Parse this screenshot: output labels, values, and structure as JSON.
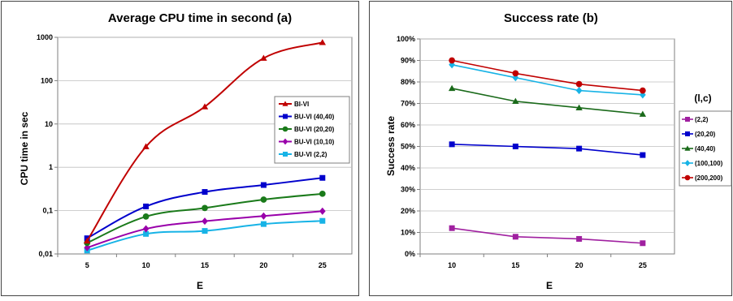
{
  "chart_data": [
    {
      "type": "line",
      "title": "Average CPU time in second (a)",
      "xlabel": "E",
      "ylabel": "CPU time in sec",
      "yscale": "log",
      "x": [
        5,
        10,
        15,
        20,
        25
      ],
      "x_ticks": [
        "5",
        "10",
        "15",
        "20",
        "25"
      ],
      "ylim": [
        0.01,
        1000
      ],
      "y_ticks": [
        "0,01",
        "0,1",
        "1",
        "10",
        "100",
        "1000"
      ],
      "grid": true,
      "legend_position": "right",
      "series": [
        {
          "name": "BI-VI",
          "color": "#c00000",
          "marker": "triangle",
          "values": [
            0.02,
            3,
            25,
            330,
            760
          ]
        },
        {
          "name": "BU-VI (40,40)",
          "color": "#0000cc",
          "marker": "square",
          "values": [
            0.023,
            0.125,
            0.27,
            0.39,
            0.57
          ]
        },
        {
          "name": "BU-VI (20,20)",
          "color": "#1a7a1a",
          "marker": "circle",
          "values": [
            0.018,
            0.073,
            0.115,
            0.18,
            0.245
          ]
        },
        {
          "name": "BU-VI (10,10)",
          "color": "#9900aa",
          "marker": "diamond",
          "values": [
            0.014,
            0.038,
            0.057,
            0.075,
            0.097
          ]
        },
        {
          "name": "BU-VI (2,2)",
          "color": "#17b3e6",
          "marker": "square",
          "values": [
            0.012,
            0.029,
            0.034,
            0.049,
            0.058
          ]
        }
      ]
    },
    {
      "type": "line",
      "title": "Success rate (b)",
      "xlabel": "E",
      "ylabel": "Success rate",
      "x": [
        10,
        15,
        20,
        25
      ],
      "x_ticks": [
        "10",
        "15",
        "20",
        "25"
      ],
      "ylim": [
        0,
        100
      ],
      "y_ticks": [
        "0%",
        "10%",
        "20%",
        "30%",
        "40%",
        "50%",
        "60%",
        "70%",
        "80%",
        "90%",
        "100%"
      ],
      "grid": true,
      "legend_position": "right",
      "legend_title": "(l,c)",
      "series": [
        {
          "name": "(2,2)",
          "color": "#a020a0",
          "marker": "square",
          "values": [
            12,
            8,
            7,
            5
          ]
        },
        {
          "name": "(20,20)",
          "color": "#0000cc",
          "marker": "square",
          "values": [
            51,
            50,
            49,
            46
          ]
        },
        {
          "name": "(40,40)",
          "color": "#1a6a1a",
          "marker": "triangle",
          "values": [
            77,
            71,
            68,
            65
          ]
        },
        {
          "name": "(100,100)",
          "color": "#17b3e6",
          "marker": "diamond",
          "values": [
            88,
            82,
            76,
            74
          ]
        },
        {
          "name": "(200,200)",
          "color": "#c00000",
          "marker": "circle",
          "values": [
            90,
            84,
            79,
            76
          ]
        }
      ]
    }
  ]
}
